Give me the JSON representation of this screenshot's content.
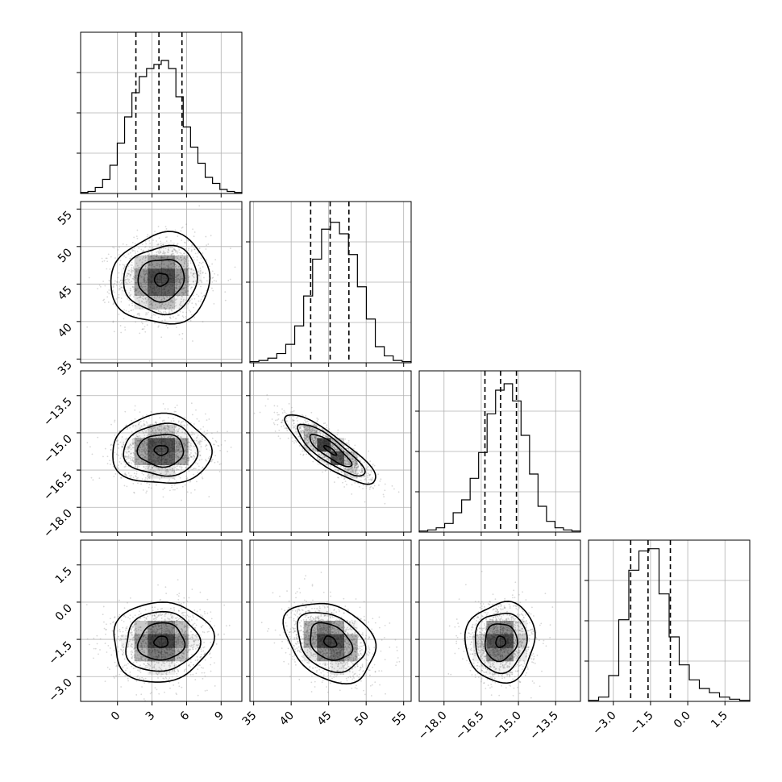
{
  "chart_data": {
    "type": "corner",
    "grid": true,
    "params": [
      {
        "range": [
          -3.2,
          10.8
        ],
        "ticks": [
          0,
          3,
          6,
          9
        ],
        "tick_labels": [
          "0",
          "3",
          "6",
          "9"
        ],
        "quantiles": [
          1.6,
          3.6,
          5.6
        ],
        "hist": [
          0.5,
          1,
          3,
          7,
          14,
          25,
          38,
          50,
          58,
          62,
          64,
          66,
          62,
          48,
          33,
          23,
          15,
          8,
          5,
          2,
          1,
          0.5
        ],
        "hist_max": 80
      },
      {
        "range": [
          34.5,
          56
        ],
        "ticks": [
          35,
          40,
          45,
          50,
          55
        ],
        "tick_labels": [
          "35",
          "40",
          "45",
          "50",
          "55"
        ],
        "quantiles": [
          42.6,
          45.2,
          47.7
        ],
        "hist": [
          0.5,
          1,
          2,
          4,
          8,
          16,
          29,
          45,
          58,
          61,
          56,
          47,
          33,
          19,
          7,
          3,
          1,
          0.5
        ],
        "hist_max": 70
      },
      {
        "range": [
          -19.0,
          -12.5
        ],
        "ticks": [
          -18,
          -16.5,
          -15,
          -13.5
        ],
        "tick_labels": [
          "−18.0",
          "−16.5",
          "−15.0",
          "−13.5"
        ],
        "quantiles": [
          -16.35,
          -15.72,
          -15.08
        ],
        "hist": [
          0.5,
          1,
          2,
          4,
          9,
          15,
          25,
          37,
          55,
          66,
          69,
          61,
          45,
          27,
          12,
          5,
          2,
          1,
          0.5
        ],
        "hist_max": 75
      },
      {
        "range": [
          -4.0,
          2.5
        ],
        "ticks": [
          -3,
          -1.5,
          0,
          1.5
        ],
        "tick_labels": [
          "−3.0",
          "−1.5",
          "0.0",
          "1.5"
        ],
        "quantiles": [
          -2.3,
          -1.6,
          -0.7
        ],
        "hist": [
          0.5,
          2,
          12,
          38,
          61,
          70,
          71,
          50,
          30,
          17,
          10,
          6,
          4,
          2,
          1,
          0.5
        ],
        "hist_max": 75
      }
    ],
    "pairs": [
      {
        "row": 1,
        "col": 0,
        "center": [
          3.8,
          45.6
        ],
        "sigma": [
          2.0,
          2.8
        ],
        "corr": 0.05
      },
      {
        "row": 2,
        "col": 0,
        "center": [
          3.8,
          -15.7
        ],
        "sigma": [
          2.0,
          0.65
        ],
        "corr": 0.0
      },
      {
        "row": 2,
        "col": 1,
        "center": [
          45.2,
          -15.7
        ],
        "sigma": [
          2.8,
          0.65
        ],
        "corr": -0.85
      },
      {
        "row": 3,
        "col": 0,
        "center": [
          3.8,
          -1.6
        ],
        "sigma": [
          2.0,
          0.75
        ],
        "corr": 0.05
      },
      {
        "row": 3,
        "col": 1,
        "center": [
          45.2,
          -1.6
        ],
        "sigma": [
          2.8,
          0.75
        ],
        "corr": -0.3
      },
      {
        "row": 3,
        "col": 2,
        "center": [
          -15.72,
          -1.6
        ],
        "sigma": [
          0.65,
          0.75
        ],
        "corr": 0.05
      }
    ],
    "colors": {
      "line": "#000000",
      "grid": "#b0b0b0",
      "scatter": "#8f8f8f",
      "density": "#000000"
    }
  }
}
